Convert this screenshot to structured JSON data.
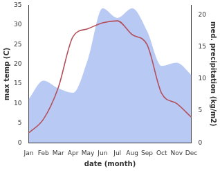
{
  "chart_data": {
    "type": "line",
    "x_label": "date (month)",
    "y_label": "max temp (C)",
    "y2_label": "med. precipitation (kg/m2)",
    "categories": [
      "Jan",
      "Feb",
      "Mar",
      "Apr",
      "May",
      "Jun",
      "Jul",
      "Aug",
      "Sep",
      "Oct",
      "Nov",
      "Dec"
    ],
    "series": [
      {
        "type": "area",
        "axis": "y2",
        "color": "#b8c9f4",
        "values": [
          6.8,
          9.7,
          8.5,
          7.8,
          13,
          21,
          19.5,
          21,
          17.5,
          12,
          12.5,
          10.6
        ]
      },
      {
        "type": "line",
        "color": "#b4505c",
        "values": [
          2.5,
          6,
          14,
          27,
          29,
          30.5,
          31,
          27.5,
          25,
          12.5,
          10,
          6.5
        ]
      }
    ],
    "ylim": [
      0,
      35
    ],
    "yticks": [
      0,
      5,
      10,
      15,
      20,
      25,
      30,
      35
    ],
    "y2lim": [
      0,
      21.5
    ],
    "y2ticks": [
      0,
      5,
      10,
      15,
      20
    ],
    "grid": false
  }
}
